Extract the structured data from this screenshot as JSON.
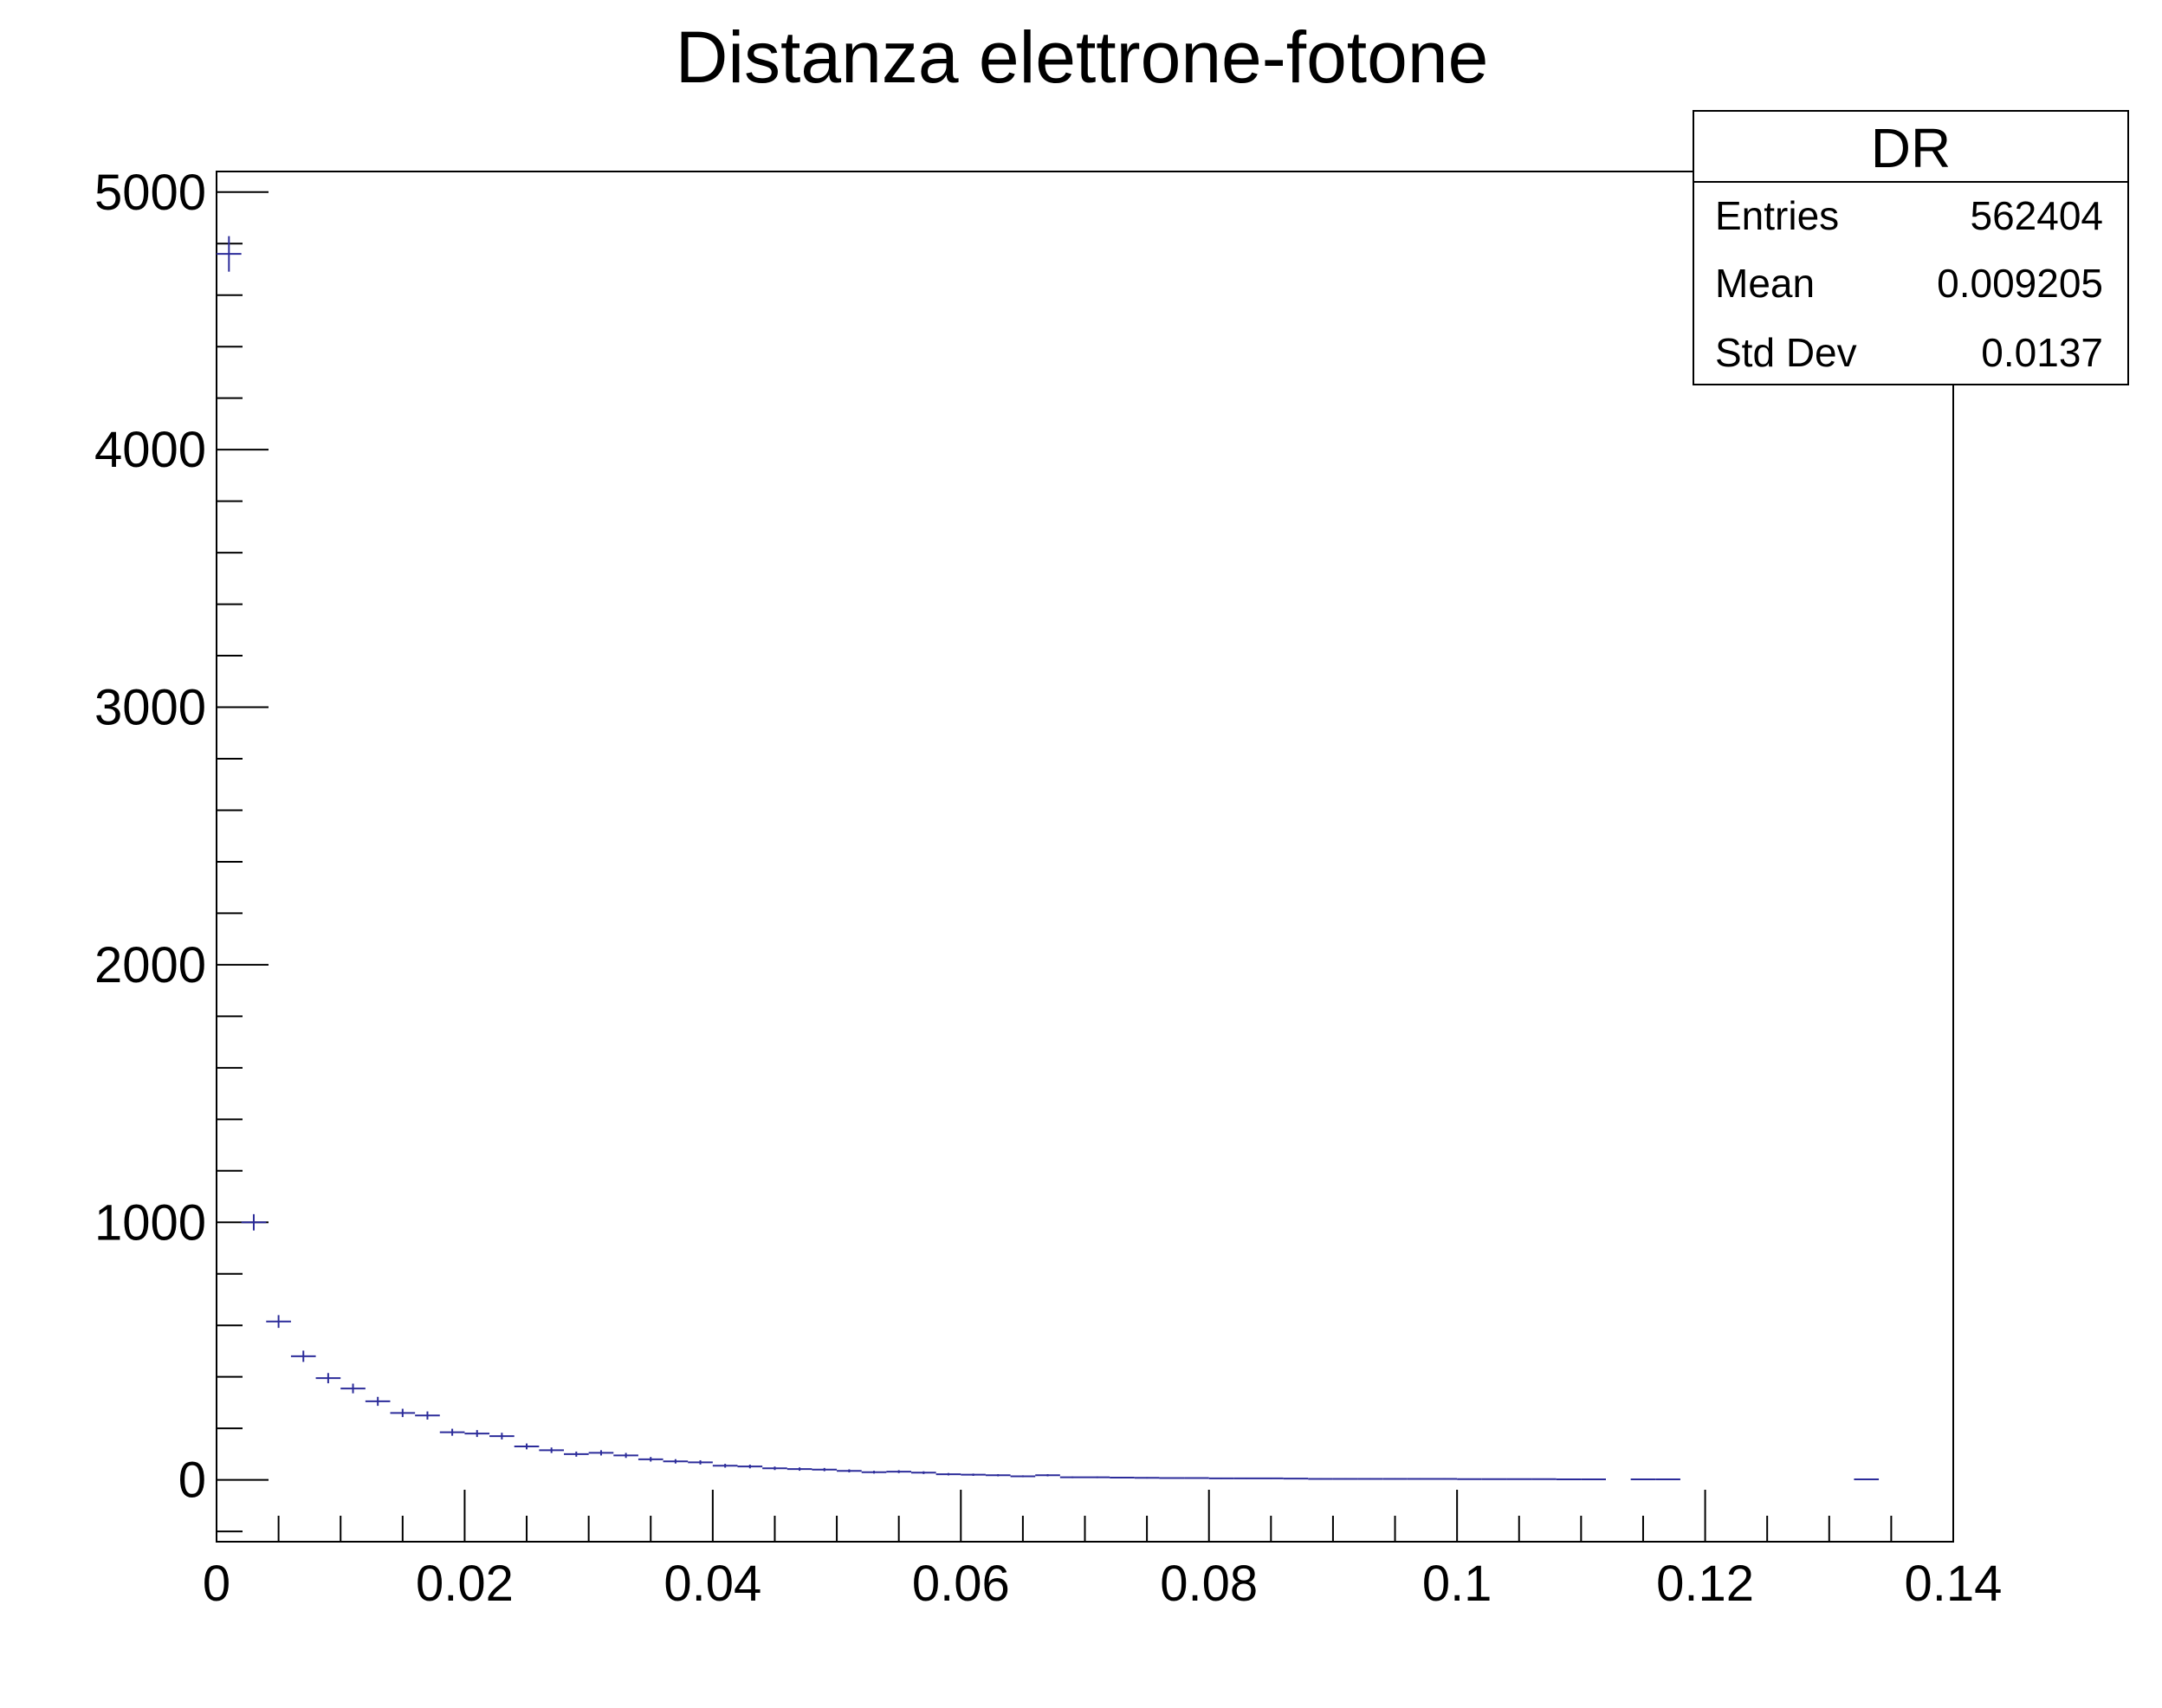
{
  "chart_data": {
    "type": "scatter",
    "title": "Distanza elettrone-fotone",
    "xlabel": "",
    "ylabel": "",
    "xlim": [
      0,
      0.14
    ],
    "ylim": [
      -240,
      5080
    ],
    "x_ticks": [
      {
        "value": 0,
        "label": "0"
      },
      {
        "value": 0.02,
        "label": "0.02"
      },
      {
        "value": 0.04,
        "label": "0.04"
      },
      {
        "value": 0.06,
        "label": "0.06"
      },
      {
        "value": 0.08,
        "label": "0.08"
      },
      {
        "value": 0.1,
        "label": "0.1"
      },
      {
        "value": 0.12,
        "label": "0.12"
      },
      {
        "value": 0.14,
        "label": "0.14"
      }
    ],
    "y_ticks": [
      {
        "value": 0,
        "label": "0"
      },
      {
        "value": 1000,
        "label": "1000"
      },
      {
        "value": 2000,
        "label": "2000"
      },
      {
        "value": 3000,
        "label": "3000"
      },
      {
        "value": 4000,
        "label": "4000"
      },
      {
        "value": 5000,
        "label": "5000"
      }
    ],
    "grid": false,
    "bin_width": 0.002,
    "marker_color": "#2c2c9a",
    "series": [
      {
        "x": [
          0.001,
          0.003,
          0.005,
          0.007,
          0.009,
          0.011,
          0.013,
          0.015,
          0.017,
          0.019,
          0.021,
          0.023,
          0.025,
          0.027,
          0.029,
          0.031,
          0.033,
          0.035,
          0.037,
          0.039,
          0.041,
          0.043,
          0.045,
          0.047,
          0.049,
          0.051,
          0.053,
          0.055,
          0.057,
          0.059,
          0.061,
          0.063,
          0.065,
          0.067,
          0.069,
          0.071,
          0.073,
          0.075,
          0.077,
          0.079,
          0.081,
          0.083,
          0.085,
          0.087,
          0.089,
          0.091,
          0.093,
          0.095,
          0.097,
          0.099,
          0.101,
          0.103,
          0.105,
          0.107,
          0.109,
          0.111,
          0.115,
          0.117,
          0.133
        ],
        "y": [
          4760,
          1000,
          615,
          480,
          395,
          355,
          305,
          260,
          250,
          185,
          180,
          170,
          130,
          115,
          100,
          105,
          95,
          80,
          72,
          68,
          55,
          52,
          45,
          42,
          40,
          35,
          30,
          32,
          28,
          22,
          20,
          18,
          14,
          18,
          10,
          10,
          9,
          8,
          7,
          7,
          6,
          6,
          6,
          5,
          4,
          4,
          4,
          4,
          4,
          4,
          3,
          3,
          3,
          3,
          2,
          2,
          2,
          2,
          2
        ]
      }
    ],
    "stats_box": {
      "title": "DR",
      "placement": "top-right",
      "rows": [
        {
          "label": "Entries",
          "value": "562404"
        },
        {
          "label": "Mean",
          "value": "0.009205"
        },
        {
          "label": "Std Dev",
          "value": "0.0137"
        }
      ]
    }
  }
}
